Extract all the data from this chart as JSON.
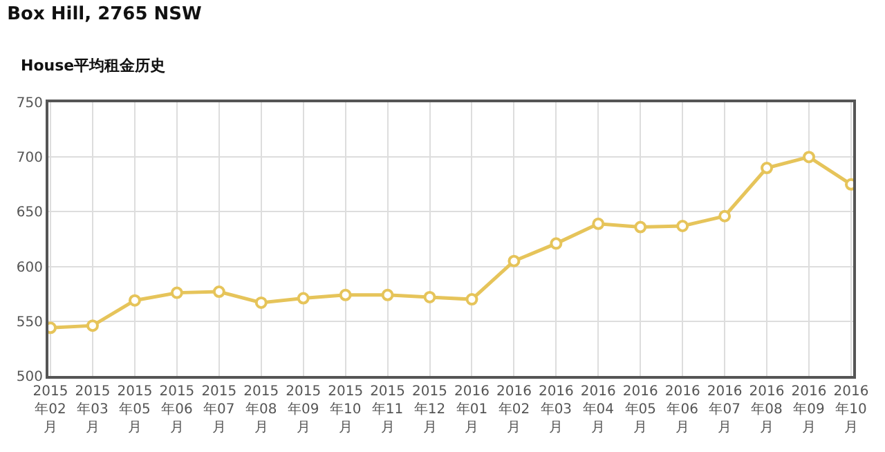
{
  "chart_data": {
    "type": "line",
    "title": "Box Hill, 2765 NSW",
    "subtitle": "House平均租金历史",
    "categories": [
      "2015年02月",
      "2015年03月",
      "2015年05月",
      "2015年06月",
      "2015年07月",
      "2015年08月",
      "2015年09月",
      "2015年10月",
      "2015年11月",
      "2015年12月",
      "2016年01月",
      "2016年02月",
      "2016年03月",
      "2016年04月",
      "2016年05月",
      "2016年06月",
      "2016年07月",
      "2016年08月",
      "2016年09月",
      "2016年10月"
    ],
    "series": [
      {
        "color": "#e6c45a",
        "values": [
          544,
          546,
          569,
          576,
          577,
          567,
          571,
          574,
          574,
          572,
          570,
          605,
          621,
          639,
          636,
          637,
          646,
          690,
          700,
          675
        ]
      }
    ],
    "ylim": [
      500,
      750
    ],
    "yticks": [
      500,
      550,
      600,
      650,
      700,
      750
    ],
    "grid": true,
    "marker": "circle",
    "line_style": "solid"
  }
}
